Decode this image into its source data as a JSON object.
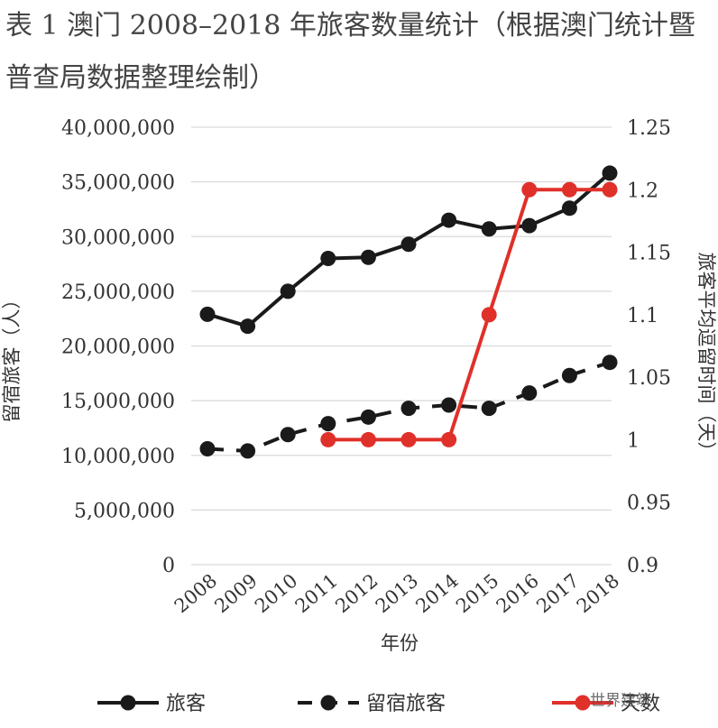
{
  "title": "表 1 澳门 2008–2018 年旅客数量统计（根据澳门统计暨普查局数据整理绘制）",
  "watermark": "世界建筑",
  "chart_data": {
    "type": "line",
    "xlabel": "年份",
    "ylabel_left": "留宿旅客（人）",
    "ylabel_right": "旅客平均逗留时间（天）",
    "x": [
      "2008",
      "2009",
      "2010",
      "2011",
      "2012",
      "2013",
      "2014",
      "2015",
      "2016",
      "2017",
      "2018"
    ],
    "ylim_left": [
      0,
      40000000
    ],
    "yticks_left": [
      "0",
      "5,000,000",
      "10,000,000",
      "15,000,000",
      "20,000,000",
      "25,000,000",
      "30,000,000",
      "35,000,000",
      "40,000,000"
    ],
    "ylim_right": [
      0.9,
      1.25
    ],
    "yticks_right": [
      "0.9",
      "0.95",
      "1",
      "1.05",
      "1.1",
      "1.15",
      "1.2",
      "1.25"
    ],
    "grid": true,
    "legend_position": "bottom",
    "series": [
      {
        "name": "旅客",
        "axis": "left",
        "style": "solid",
        "color": "#1a1a1a",
        "values": [
          22900000,
          21800000,
          25000000,
          28000000,
          28100000,
          29300000,
          31500000,
          30700000,
          31000000,
          32600000,
          35800000
        ]
      },
      {
        "name": "留宿旅客",
        "axis": "left",
        "style": "dashed",
        "color": "#1a1a1a",
        "values": [
          10600000,
          10400000,
          11900000,
          12900000,
          13500000,
          14300000,
          14600000,
          14300000,
          15700000,
          17300000,
          18500000
        ]
      },
      {
        "name": "天数",
        "axis": "right",
        "style": "solid",
        "color": "#e0302a",
        "values": [
          null,
          null,
          null,
          1.0,
          1.0,
          1.0,
          1.0,
          1.1,
          1.2,
          1.2,
          1.2
        ]
      }
    ]
  }
}
